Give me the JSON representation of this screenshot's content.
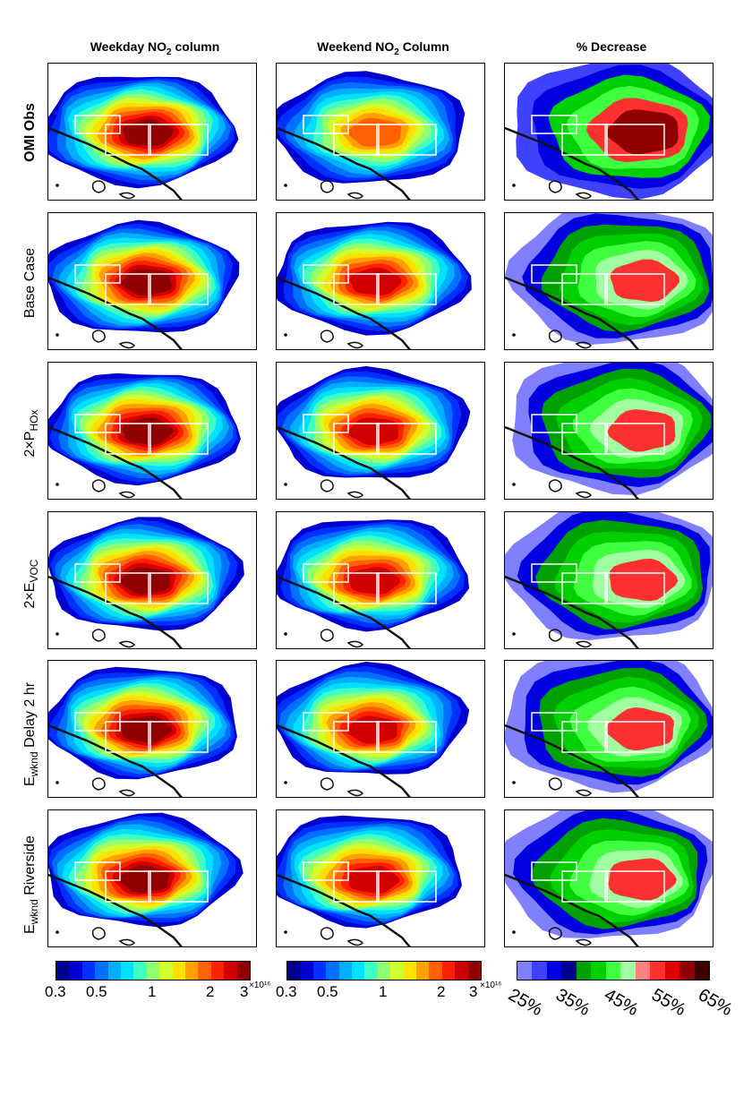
{
  "columns": [
    {
      "title": "Weekday NO",
      "sub": "2",
      "suffix": " column"
    },
    {
      "title": "Weekend NO",
      "sub": "2",
      "suffix": " Column"
    },
    {
      "title": "% Decrease",
      "sub": "",
      "suffix": ""
    }
  ],
  "rows": [
    {
      "label": "OMI Obs",
      "bold": true
    },
    {
      "label": "Base Case",
      "bold": false
    },
    {
      "label": "2×P",
      "sub": "HOx",
      "bold": false
    },
    {
      "label": "2×E",
      "sub": "VOC",
      "bold": false
    },
    {
      "label_main": "E",
      "sub": "wknd",
      "label": "Delay 2 hr",
      "bold": false
    },
    {
      "label_main": "E",
      "sub": "wknd",
      "label": "Riverside",
      "bold": false
    }
  ],
  "colorbars": {
    "no2_ticks": [
      "0.3",
      "0.5",
      "1",
      "2",
      "3"
    ],
    "no2_multiplier": "×10¹⁶",
    "pct_ticks": [
      "25%",
      "35%",
      "45%",
      "55%",
      "65%"
    ],
    "jet_colors": [
      "#00008f",
      "#0000d0",
      "#0030ff",
      "#0070ff",
      "#00b0ff",
      "#00e0ff",
      "#40ffc0",
      "#90ff70",
      "#d0ff30",
      "#ffe000",
      "#ffa000",
      "#ff6000",
      "#ff2000",
      "#d00000",
      "#900000"
    ],
    "pct_colors": [
      "#8080ff",
      "#4040ff",
      "#0000e0",
      "#000090",
      "#00a000",
      "#00d000",
      "#40ff40",
      "#a0ffa0",
      "#ff8080",
      "#ff3030",
      "#e00000",
      "#900000",
      "#400000"
    ]
  }
}
